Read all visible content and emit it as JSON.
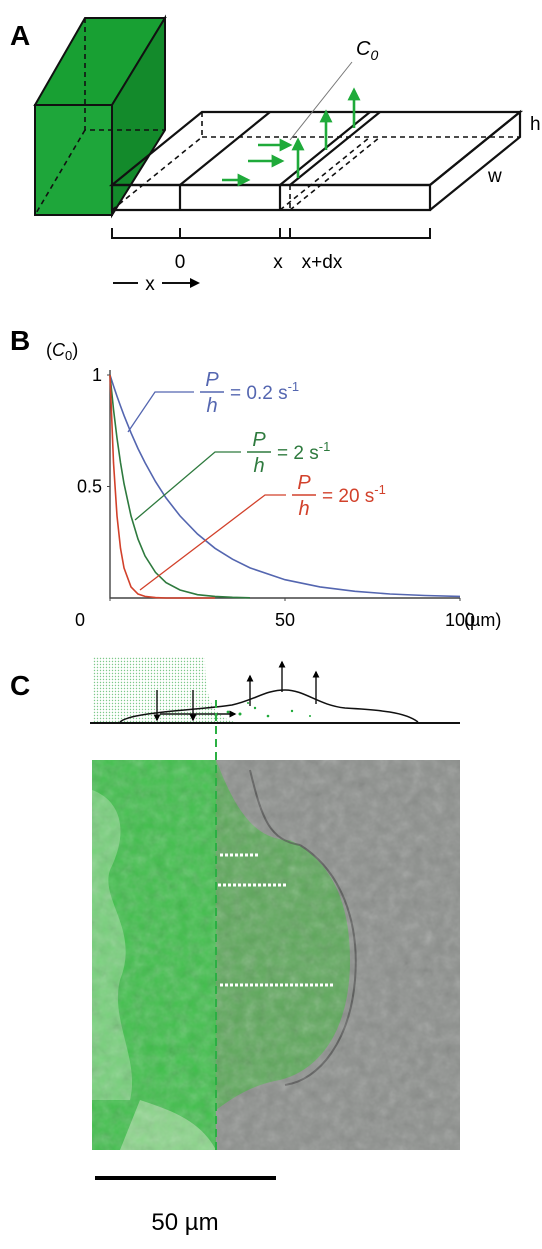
{
  "panel_a": {
    "label": "A",
    "c0": {
      "base": "C",
      "sub": "0"
    },
    "h": "h",
    "w": "w",
    "axis_labels": [
      "0",
      "x",
      "x+dx"
    ],
    "direction": "x"
  },
  "panel_b": {
    "label": "B",
    "chart_data": {
      "type": "line",
      "y_label": {
        "prefix": "(",
        "base": "C",
        "sub": "0",
        "suffix": ")"
      },
      "x_unit": "(µm)",
      "x": [
        0,
        1,
        2,
        3,
        4,
        6,
        8,
        10,
        13,
        16,
        20,
        25,
        30,
        35,
        40,
        50,
        60,
        70,
        80,
        90,
        100
      ],
      "series": [
        {
          "label": {
            "num": "P",
            "den": "h",
            "value": "= 0.2 s",
            "exp": "-1"
          },
          "color": "#5466b0",
          "values": [
            1,
            0.951,
            0.905,
            0.861,
            0.819,
            0.741,
            0.67,
            0.607,
            0.522,
            0.449,
            0.368,
            0.287,
            0.223,
            0.174,
            0.135,
            0.082,
            0.05,
            0.03,
            0.018,
            0.011,
            0.007
          ]
        },
        {
          "label": {
            "num": "P",
            "den": "h",
            "value": "= 2 s",
            "exp": "-1"
          },
          "color": "#2e7a3e",
          "values": [
            1,
            0.846,
            0.717,
            0.607,
            0.513,
            0.368,
            0.264,
            0.189,
            0.115,
            0.069,
            0.036,
            0.015,
            0.007,
            0.003,
            0.001,
            null,
            null,
            null,
            null,
            null,
            null
          ]
        },
        {
          "label": {
            "num": "P",
            "den": "h",
            "value": "= 20 s",
            "exp": "-1"
          },
          "color": "#d2412b",
          "values": [
            1,
            0.607,
            0.368,
            0.223,
            0.135,
            0.05,
            0.018,
            0.007,
            0.002,
            0,
            0,
            0,
            0,
            null,
            null,
            null,
            null,
            null,
            null,
            null,
            null
          ]
        }
      ],
      "xlim": [
        0,
        100
      ],
      "ylim": [
        0,
        1
      ],
      "xticks": [
        0,
        50,
        100
      ],
      "yticks": [
        0.5,
        1
      ]
    }
  },
  "panel_c": {
    "label": "C",
    "scale_bar": "50 µm"
  }
}
